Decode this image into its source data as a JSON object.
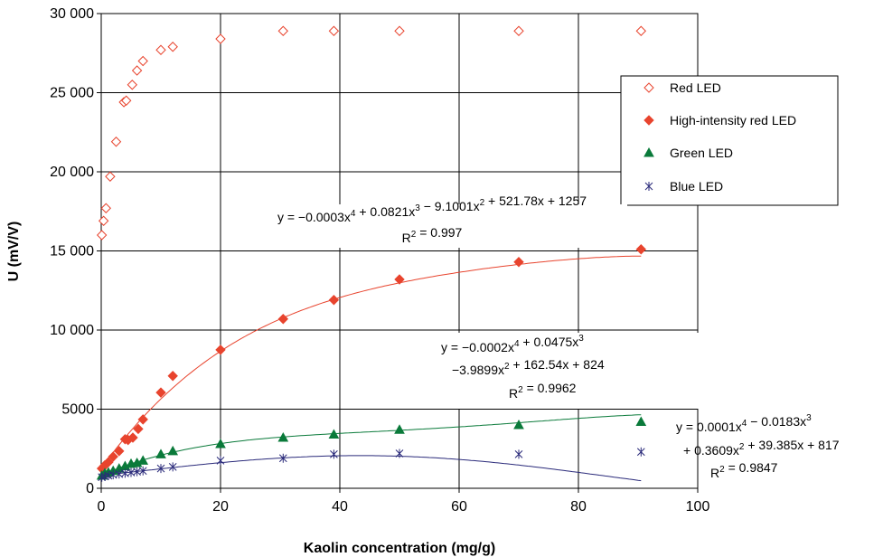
{
  "chart_data": {
    "type": "scatter",
    "xlabel": "Kaolin concentration (mg/g)",
    "ylabel": "U (mV/V)",
    "xlim": [
      0,
      100
    ],
    "ylim": [
      0,
      30000
    ],
    "x_ticks": [
      "0",
      "20",
      "40",
      "60",
      "80",
      "100"
    ],
    "y_ticks": [
      "0",
      "5000",
      "10 000",
      "15 000",
      "20 000",
      "25 000",
      "30 000"
    ],
    "grid": true,
    "legend_position": "right",
    "series": [
      {
        "name": "Red LED",
        "marker": "diamond-open",
        "color": "#e8442e",
        "points": [
          [
            0.1,
            16000
          ],
          [
            0.4,
            16900
          ],
          [
            0.8,
            17700
          ],
          [
            1.5,
            19700
          ],
          [
            2.5,
            21900
          ],
          [
            3.8,
            24400
          ],
          [
            4.2,
            24500
          ],
          [
            5.2,
            25500
          ],
          [
            6,
            26400
          ],
          [
            7,
            27000
          ],
          [
            10,
            27700
          ],
          [
            12,
            27900
          ],
          [
            20,
            28400
          ],
          [
            30.5,
            28900
          ],
          [
            39,
            28900
          ],
          [
            50,
            28900
          ],
          [
            70,
            28900
          ],
          [
            90.5,
            28900
          ]
        ]
      },
      {
        "name": "High-intensity red LED",
        "marker": "diamond-filled",
        "color": "#e8442e",
        "points": [
          [
            0.1,
            1250
          ],
          [
            0.6,
            1450
          ],
          [
            1.2,
            1650
          ],
          [
            2,
            2000
          ],
          [
            3,
            2350
          ],
          [
            4,
            3100
          ],
          [
            4.5,
            3050
          ],
          [
            5.3,
            3200
          ],
          [
            6.2,
            3750
          ],
          [
            7,
            4350
          ],
          [
            10,
            6050
          ],
          [
            12,
            7100
          ],
          [
            20,
            8750
          ],
          [
            30.5,
            10700
          ],
          [
            39,
            11900
          ],
          [
            50,
            13200
          ],
          [
            70,
            14300
          ],
          [
            90.5,
            15100
          ]
        ],
        "fit": {
          "coeffs": [
            1257,
            521.78,
            -9.1001,
            0.0821,
            -0.0003
          ]
        },
        "equation_lines": [
          {
            "prefix": "y = −0.0003x",
            "sup": "4",
            "rest": " + 0.0821x",
            "sup2": "3",
            "rest2": " − 9.1001x",
            "sup3": "2",
            "rest3": " + 521.78x + 1257"
          },
          {
            "prefix": "R",
            "sup": "2",
            "rest": " = 0.997"
          }
        ]
      },
      {
        "name": "Green LED",
        "marker": "triangle",
        "color": "#0a7a3a",
        "points": [
          [
            0.1,
            800
          ],
          [
            0.6,
            950
          ],
          [
            1.2,
            1000
          ],
          [
            2,
            1100
          ],
          [
            3,
            1250
          ],
          [
            4,
            1400
          ],
          [
            5,
            1550
          ],
          [
            6,
            1600
          ],
          [
            7,
            1750
          ],
          [
            10,
            2150
          ],
          [
            12,
            2350
          ],
          [
            20,
            2800
          ],
          [
            30.5,
            3200
          ],
          [
            39,
            3400
          ],
          [
            50,
            3700
          ],
          [
            70,
            4000
          ],
          [
            90.5,
            4200
          ]
        ],
        "fit": {
          "coeffs": [
            824,
            162.54,
            -3.9899,
            0.0475,
            -0.0002
          ]
        },
        "equation_lines": [
          {
            "prefix": "y = −0.0002x",
            "sup": "4",
            "rest": " + 0.0475x",
            "sup2": "3"
          },
          {
            "prefix": "−3.9899x",
            "sup": "2",
            "rest": " + 162.54x + 824"
          },
          {
            "prefix": "R",
            "sup": "2",
            "rest": " = 0.9962"
          }
        ]
      },
      {
        "name": "Blue LED",
        "marker": "asterisk",
        "color": "#2a2a7a",
        "points": [
          [
            0.1,
            700
          ],
          [
            0.6,
            750
          ],
          [
            1.2,
            800
          ],
          [
            2,
            850
          ],
          [
            3,
            900
          ],
          [
            4,
            950
          ],
          [
            5,
            1000
          ],
          [
            6,
            1050
          ],
          [
            7,
            1100
          ],
          [
            10,
            1250
          ],
          [
            12,
            1350
          ],
          [
            20,
            1750
          ],
          [
            30.5,
            1900
          ],
          [
            39,
            2150
          ],
          [
            50,
            2200
          ],
          [
            70,
            2150
          ],
          [
            90.5,
            2300
          ]
        ],
        "fit": {
          "coeffs": [
            817,
            39.385,
            0.3609,
            -0.0183,
            0.0001
          ]
        },
        "equation_lines": [
          {
            "prefix": "y = 0.0001x",
            "sup": "4",
            "rest": " − 0.0183x",
            "sup2": "3"
          },
          {
            "prefix": "+ 0.3609x",
            "sup": "2",
            "rest": " + 39.385x + 817"
          },
          {
            "prefix": "R",
            "sup": "2",
            "rest": " = 0.9847"
          }
        ]
      }
    ]
  }
}
